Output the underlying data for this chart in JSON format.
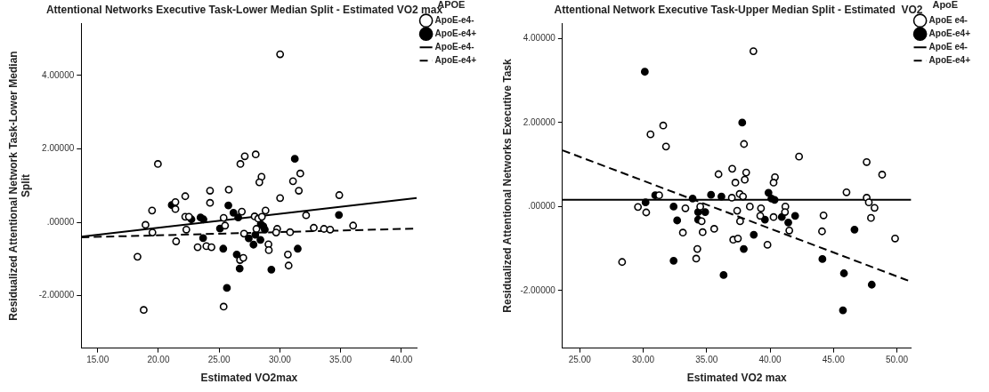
{
  "chart_data": [
    {
      "type": "scatter",
      "title": "Attentional Networks Executive Task-Lower Median Split - Estimated VO2 max",
      "xlabel": "Estimated VO2max",
      "ylabel": "Residualized Attentional Network Task-Lower Median Split",
      "legend_title": "APOE",
      "xlim": [
        13.65,
        41.3
      ],
      "ylim": [
        -3.43,
        5.42
      ],
      "xticks": [
        {
          "value": 15,
          "label": "15.00"
        },
        {
          "value": 20,
          "label": "20.00"
        },
        {
          "value": 25,
          "label": "25.00"
        },
        {
          "value": 30,
          "label": "30.00"
        },
        {
          "value": 35,
          "label": "35.00"
        },
        {
          "value": 40,
          "label": "40.00"
        }
      ],
      "yticks": [
        {
          "value": -2,
          "label": "-2.00000"
        },
        {
          "value": 0,
          "label": ".00000"
        },
        {
          "value": 2,
          "label": "2.00000"
        },
        {
          "value": 4,
          "label": "4.00000"
        }
      ],
      "grid": false,
      "legend": "top right",
      "series": [
        {
          "name": "ApoE-e4-",
          "marker": "circle",
          "color": "#ffffff",
          "x": [
            30.02,
            19.96,
            26.75,
            27.11,
            28.01,
            28.49,
            28.31,
            31.08,
            31.68,
            24.25,
            25.79,
            31.56,
            34.89,
            22.21,
            30.02,
            21.4,
            21.4,
            24.25,
            19.48,
            26.87,
            28.82,
            22.21,
            22.51,
            25.37,
            27.92,
            28.22,
            28.52,
            25.49,
            18.94,
            19.51,
            22.3,
            28.07,
            29.78,
            29.69,
            27.05,
            30.84,
            32.16,
            32.79,
            33.63,
            34.14,
            36.03,
            21.46,
            23.23,
            23.95,
            24.37,
            29.06,
            29.09,
            30.66,
            26.72,
            26.99,
            18.28,
            30.72,
            25.37,
            18.79
          ],
          "values": [
            4.58,
            1.59,
            1.59,
            1.8,
            1.85,
            1.24,
            1.09,
            1.12,
            1.33,
            0.86,
            0.89,
            0.86,
            0.74,
            0.71,
            0.66,
            0.55,
            0.36,
            0.53,
            0.32,
            0.29,
            0.32,
            0.15,
            0.15,
            0.12,
            0.16,
            0.1,
            0.15,
            -0.09,
            -0.07,
            -0.28,
            -0.2,
            -0.18,
            -0.18,
            -0.28,
            -0.31,
            -0.27,
            0.19,
            -0.15,
            -0.18,
            -0.2,
            -0.09,
            -0.52,
            -0.68,
            -0.65,
            -0.68,
            -0.6,
            -0.76,
            -0.88,
            -1.03,
            -0.97,
            -0.94,
            -1.18,
            -2.3,
            -2.39
          ]
        },
        {
          "name": "ApoE-e4+",
          "marker": "circle",
          "color": "#000000",
          "x": [
            31.23,
            21.1,
            25.76,
            26.18,
            26.57,
            22.72,
            23.47,
            23.71,
            28.43,
            28.64,
            25.07,
            28.76,
            34.86,
            23.68,
            27.44,
            27.98,
            28.4,
            27.83,
            25.34,
            31.47,
            26.45,
            26.69,
            29.3,
            25.64
          ],
          "values": [
            1.73,
            0.47,
            0.46,
            0.26,
            0.13,
            0.08,
            0.13,
            0.08,
            -0.05,
            -0.11,
            -0.17,
            -0.2,
            0.2,
            -0.43,
            -0.44,
            -0.34,
            -0.48,
            -0.61,
            -0.72,
            -0.72,
            -0.88,
            -1.26,
            -1.29,
            -1.79
          ]
        },
        {
          "name": "ApoE-e4-",
          "type": "line",
          "marker": "none",
          "line_style": "solid",
          "color": "#000000",
          "x": [
            13.65,
            41.26
          ],
          "values": [
            -0.39,
            0.66
          ]
        },
        {
          "name": "ApoE-e4+",
          "type": "line",
          "marker": "none",
          "line_style": "dashed",
          "color": "#000000",
          "x": [
            13.65,
            41.26
          ],
          "values": [
            -0.41,
            -0.17
          ]
        }
      ]
    },
    {
      "type": "scatter",
      "title": "Attentional Network Executive Task-Upper Median Split - Estimated  VO2",
      "xlabel": "Estimated VO2 max",
      "ylabel": "Residualized Attentional Networks Executive Task",
      "legend_title": "ApoE",
      "xlim": [
        23.64,
        51.13
      ],
      "ylim": [
        -3.37,
        4.36
      ],
      "xticks": [
        {
          "value": 25,
          "label": "25.00"
        },
        {
          "value": 30,
          "label": "30.00"
        },
        {
          "value": 35,
          "label": "35.00"
        },
        {
          "value": 40,
          "label": "40.00"
        },
        {
          "value": 45,
          "label": "45.00"
        },
        {
          "value": 50,
          "label": "50.00"
        }
      ],
      "yticks": [
        {
          "value": -2,
          "label": "-2.00000"
        },
        {
          "value": 0,
          "label": ".00000"
        },
        {
          "value": 2,
          "label": "2.00000"
        },
        {
          "value": 4,
          "label": "4.00000"
        }
      ],
      "grid": false,
      "legend": "top right",
      "series": [
        {
          "name": "ApoE e4-",
          "marker": "circle",
          "color": "#ffffff",
          "x": [
            38.69,
            31.58,
            30.58,
            31.8,
            37.95,
            42.29,
            47.62,
            48.84,
            37.02,
            35.94,
            38.12,
            37.27,
            38.01,
            40.39,
            40.28,
            46.03,
            31.26,
            36.99,
            37.61,
            37.87,
            47.62,
            47.79,
            29.59,
            30.24,
            33.33,
            34.5,
            34.61,
            37.41,
            37.64,
            38.41,
            39.29,
            39.23,
            40.28,
            41.21,
            41.18,
            44.22,
            47.96,
            48.24,
            33.13,
            34.69,
            35.6,
            41.52,
            44.1,
            37.1,
            37.47,
            39.8,
            34.27,
            49.86,
            34.18,
            28.34
          ],
          "values": [
            3.7,
            1.93,
            1.72,
            1.43,
            1.49,
            1.19,
            1.06,
            0.76,
            0.9,
            0.77,
            0.81,
            0.57,
            0.64,
            0.7,
            0.57,
            0.34,
            0.27,
            0.21,
            0.3,
            0.24,
            0.21,
            0.1,
            -0.01,
            -0.14,
            -0.04,
            0.0,
            -0.35,
            -0.1,
            -0.35,
            0.0,
            -0.04,
            -0.22,
            -0.25,
            0.0,
            -0.13,
            -0.21,
            -0.27,
            -0.03,
            -0.62,
            -0.61,
            -0.53,
            -0.57,
            -0.59,
            -0.79,
            -0.76,
            -0.91,
            -1.01,
            -0.76,
            -1.24,
            -1.32
          ]
        },
        {
          "name": "ApoE-e4+",
          "marker": "circle",
          "color": "#000000",
          "x": [
            30.13,
            37.81,
            30.95,
            33.9,
            35.35,
            36.17,
            39.88,
            40.11,
            40.36,
            30.19,
            32.4,
            34.33,
            34.89,
            32.68,
            34.33,
            39.6,
            40.93,
            41.44,
            41.98,
            46.66,
            38.72,
            37.93,
            32.4,
            44.13,
            36.34,
            45.83,
            48.02,
            45.75
          ],
          "values": [
            3.21,
            2.0,
            0.27,
            0.19,
            0.28,
            0.24,
            0.33,
            0.19,
            0.16,
            0.1,
            0.0,
            -0.13,
            -0.13,
            -0.33,
            -0.31,
            -0.31,
            -0.25,
            -0.38,
            -0.22,
            -0.55,
            -0.67,
            -1.01,
            -1.29,
            -1.25,
            -1.63,
            -1.59,
            -1.86,
            -2.47
          ]
        },
        {
          "name": "ApoE e4-",
          "type": "line",
          "marker": "none",
          "line_style": "solid",
          "color": "#000000",
          "x": [
            23.64,
            51.13
          ],
          "values": [
            0.16,
            0.16
          ]
        },
        {
          "name": "ApoE-e4+",
          "type": "line",
          "marker": "none",
          "line_style": "dashed",
          "color": "#000000",
          "x": [
            23.64,
            51.13
          ],
          "values": [
            1.34,
            -1.79
          ]
        }
      ]
    }
  ]
}
